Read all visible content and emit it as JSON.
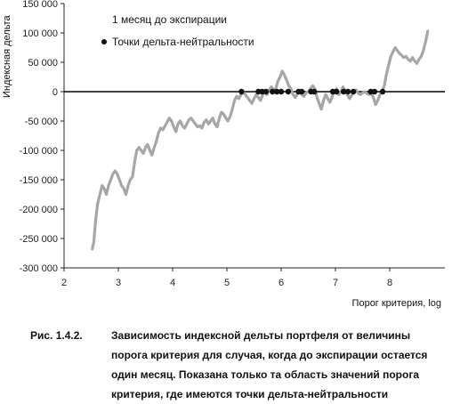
{
  "chart_data": {
    "type": "line",
    "ylabel": "Индексная дельта",
    "xlabel": "Порог критерия, log",
    "xlim": [
      2,
      9
    ],
    "ylim": [
      -300000,
      150000
    ],
    "x_ticks": [
      2,
      3,
      4,
      5,
      6,
      7,
      8
    ],
    "y_ticks": [
      150000,
      100000,
      50000,
      0,
      -50000,
      -100000,
      -150000,
      -200000,
      -250000,
      -300000
    ],
    "y_tick_labels": [
      "150 000",
      "100 000",
      "50 000",
      "0",
      "-50 000",
      "-100 000",
      "-150 000",
      "-200 000",
      "-250 000",
      "-300 000"
    ],
    "grid": false,
    "legend_position": "top-left",
    "series": [
      {
        "name": "1 месяц до экспирации",
        "color": "#a6a6a6",
        "points": [
          [
            2.52,
            -268000
          ],
          [
            2.55,
            -255000
          ],
          [
            2.58,
            -220000
          ],
          [
            2.62,
            -190000
          ],
          [
            2.66,
            -175000
          ],
          [
            2.7,
            -160000
          ],
          [
            2.74,
            -165000
          ],
          [
            2.78,
            -175000
          ],
          [
            2.82,
            -160000
          ],
          [
            2.86,
            -150000
          ],
          [
            2.9,
            -140000
          ],
          [
            2.94,
            -135000
          ],
          [
            2.98,
            -140000
          ],
          [
            3.02,
            -150000
          ],
          [
            3.06,
            -160000
          ],
          [
            3.1,
            -165000
          ],
          [
            3.14,
            -175000
          ],
          [
            3.18,
            -160000
          ],
          [
            3.22,
            -150000
          ],
          [
            3.26,
            -145000
          ],
          [
            3.3,
            -120000
          ],
          [
            3.34,
            -100000
          ],
          [
            3.38,
            -95000
          ],
          [
            3.42,
            -100000
          ],
          [
            3.46,
            -105000
          ],
          [
            3.5,
            -95000
          ],
          [
            3.54,
            -90000
          ],
          [
            3.58,
            -100000
          ],
          [
            3.62,
            -108000
          ],
          [
            3.66,
            -95000
          ],
          [
            3.7,
            -85000
          ],
          [
            3.74,
            -70000
          ],
          [
            3.78,
            -62000
          ],
          [
            3.82,
            -65000
          ],
          [
            3.86,
            -58000
          ],
          [
            3.9,
            -52000
          ],
          [
            3.94,
            -45000
          ],
          [
            3.98,
            -50000
          ],
          [
            4.02,
            -60000
          ],
          [
            4.06,
            -68000
          ],
          [
            4.1,
            -55000
          ],
          [
            4.14,
            -50000
          ],
          [
            4.18,
            -58000
          ],
          [
            4.22,
            -62000
          ],
          [
            4.26,
            -55000
          ],
          [
            4.3,
            -48000
          ],
          [
            4.34,
            -45000
          ],
          [
            4.38,
            -50000
          ],
          [
            4.42,
            -55000
          ],
          [
            4.46,
            -60000
          ],
          [
            4.5,
            -58000
          ],
          [
            4.54,
            -62000
          ],
          [
            4.58,
            -52000
          ],
          [
            4.62,
            -48000
          ],
          [
            4.66,
            -55000
          ],
          [
            4.7,
            -50000
          ],
          [
            4.74,
            -45000
          ],
          [
            4.78,
            -55000
          ],
          [
            4.82,
            -60000
          ],
          [
            4.86,
            -45000
          ],
          [
            4.9,
            -35000
          ],
          [
            4.94,
            -38000
          ],
          [
            4.98,
            -45000
          ],
          [
            5.02,
            -50000
          ],
          [
            5.06,
            -42000
          ],
          [
            5.1,
            -30000
          ],
          [
            5.14,
            -15000
          ],
          [
            5.18,
            -8000
          ],
          [
            5.22,
            -12000
          ],
          [
            5.26,
            -5000
          ],
          [
            5.3,
            0
          ],
          [
            5.34,
            -5000
          ],
          [
            5.38,
            -10000
          ],
          [
            5.42,
            -15000
          ],
          [
            5.46,
            -20000
          ],
          [
            5.5,
            -12000
          ],
          [
            5.54,
            -5000
          ],
          [
            5.58,
            -10000
          ],
          [
            5.62,
            -15000
          ],
          [
            5.66,
            -5000
          ],
          [
            5.7,
            0
          ],
          [
            5.74,
            -5000
          ],
          [
            5.78,
            3000
          ],
          [
            5.82,
            8000
          ],
          [
            5.86,
            3000
          ],
          [
            5.9,
            5000
          ],
          [
            5.94,
            18000
          ],
          [
            5.98,
            25000
          ],
          [
            6.02,
            35000
          ],
          [
            6.06,
            28000
          ],
          [
            6.1,
            20000
          ],
          [
            6.14,
            10000
          ],
          [
            6.18,
            5000
          ],
          [
            6.22,
            -5000
          ],
          [
            6.26,
            -10000
          ],
          [
            6.3,
            -3000
          ],
          [
            6.34,
            0
          ],
          [
            6.38,
            -5000
          ],
          [
            6.42,
            -8000
          ],
          [
            6.46,
            -2000
          ],
          [
            6.5,
            0
          ],
          [
            6.54,
            5000
          ],
          [
            6.58,
            10000
          ],
          [
            6.62,
            5000
          ],
          [
            6.66,
            -10000
          ],
          [
            6.7,
            -20000
          ],
          [
            6.74,
            -30000
          ],
          [
            6.78,
            -15000
          ],
          [
            6.82,
            -5000
          ],
          [
            6.86,
            -12000
          ],
          [
            6.9,
            -18000
          ],
          [
            6.94,
            -8000
          ],
          [
            6.98,
            0
          ],
          [
            7.02,
            5000
          ],
          [
            7.06,
            -5000
          ],
          [
            7.1,
            0
          ],
          [
            7.14,
            8000
          ],
          [
            7.18,
            2000
          ],
          [
            7.22,
            -5000
          ],
          [
            7.26,
            -12000
          ],
          [
            7.3,
            -6000
          ],
          [
            7.34,
            0
          ],
          [
            7.38,
            3000
          ],
          [
            7.42,
            -3000
          ],
          [
            7.46,
            -5000
          ],
          [
            7.5,
            -2000
          ],
          [
            7.54,
            0
          ],
          [
            7.58,
            -3000
          ],
          [
            7.62,
            -5000
          ],
          [
            7.66,
            -3000
          ],
          [
            7.7,
            -10000
          ],
          [
            7.74,
            -22000
          ],
          [
            7.78,
            -15000
          ],
          [
            7.82,
            -5000
          ],
          [
            7.86,
            0
          ],
          [
            7.9,
            10000
          ],
          [
            7.94,
            30000
          ],
          [
            7.98,
            45000
          ],
          [
            8.02,
            60000
          ],
          [
            8.06,
            68000
          ],
          [
            8.1,
            75000
          ],
          [
            8.14,
            70000
          ],
          [
            8.18,
            65000
          ],
          [
            8.22,
            62000
          ],
          [
            8.26,
            58000
          ],
          [
            8.3,
            60000
          ],
          [
            8.34,
            55000
          ],
          [
            8.38,
            52000
          ],
          [
            8.42,
            58000
          ],
          [
            8.46,
            52000
          ],
          [
            8.5,
            48000
          ],
          [
            8.54,
            55000
          ],
          [
            8.58,
            60000
          ],
          [
            8.62,
            70000
          ],
          [
            8.66,
            85000
          ],
          [
            8.7,
            103000
          ]
        ]
      },
      {
        "name": "Точки дельта-нейтральности",
        "color": "#111111",
        "marker": "dot",
        "x": [
          5.27,
          5.58,
          5.65,
          5.72,
          5.84,
          5.92,
          6.0,
          6.13,
          6.32,
          6.38,
          6.55,
          6.61,
          6.95,
          7.02,
          7.15,
          7.23,
          7.33,
          7.65,
          7.72,
          7.87
        ],
        "y": [
          0,
          0,
          0,
          0,
          0,
          0,
          0,
          0,
          0,
          0,
          0,
          0,
          0,
          0,
          0,
          0,
          0,
          0,
          0,
          0
        ]
      }
    ],
    "legend": [
      {
        "label": "1 месяц до экспирации",
        "marker": "none"
      },
      {
        "label": "Точки дельта-нейтральности",
        "marker": "dot"
      }
    ]
  },
  "caption": {
    "label": "Рис. 1.4.2.",
    "text": "Зависимость индексной дельты портфеля от величины порога критерия для случая, когда до экспирации остается один месяц. Показана только та область значений порога критерия, где имеются точки дельта-нейтральности"
  }
}
